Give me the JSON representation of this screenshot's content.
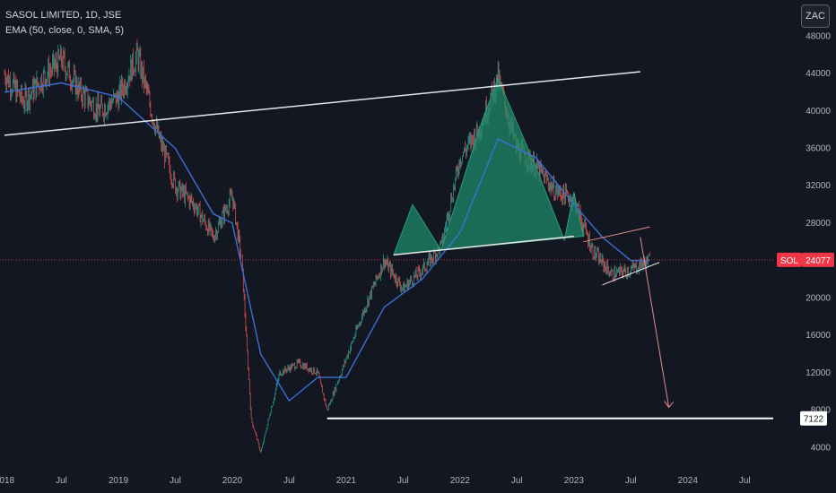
{
  "header": {
    "symbol_line": "SASOL LIMITED, 1D, JSE",
    "indicator_line": "EMA (50, close, 0, SMA, 5)",
    "currency": "ZAC"
  },
  "chart_data": {
    "type": "candlestick",
    "title": "SASOL LIMITED, 1D, JSE",
    "ylim": [
      2000,
      47000
    ],
    "y_ticks": [
      4000,
      8000,
      12000,
      16000,
      20000,
      24000,
      28000,
      32000,
      36000,
      40000,
      44000,
      48000
    ],
    "y_tick_labels": [
      "4000",
      "8000",
      "12000",
      "16000",
      "20000",
      "24000",
      "28000",
      "32000",
      "36000",
      "40000",
      "44000",
      "48000"
    ],
    "x_ticks": [
      "2018-01",
      "2018-07",
      "2019-01",
      "2019-07",
      "2020-01",
      "2020-07",
      "2021-01",
      "2021-07",
      "2022-01",
      "2022-07",
      "2023-01",
      "2023-07",
      "2024-01",
      "2024-07"
    ],
    "x_tick_labels": [
      "2018",
      "Jul",
      "2019",
      "Jul",
      "2020",
      "Jul",
      "2021",
      "Jul",
      "2022",
      "Jul",
      "2023",
      "Jul",
      "2024",
      "Jul"
    ],
    "grid": false,
    "price_path": [
      [
        "2018-01",
        44000
      ],
      [
        "2018-03",
        41000
      ],
      [
        "2018-05",
        43500
      ],
      [
        "2018-07",
        45500
      ],
      [
        "2018-09",
        42000
      ],
      [
        "2018-11",
        40000
      ],
      [
        "2019-01",
        41500
      ],
      [
        "2019-03",
        46000
      ],
      [
        "2019-05",
        38000
      ],
      [
        "2019-07",
        32000
      ],
      [
        "2019-09",
        30000
      ],
      [
        "2019-11",
        26500
      ],
      [
        "2020-01",
        31000
      ],
      [
        "2020-02",
        24000
      ],
      [
        "2020-03",
        7000
      ],
      [
        "2020-04",
        3500
      ],
      [
        "2020-06",
        12000
      ],
      [
        "2020-08",
        13000
      ],
      [
        "2020-10",
        12000
      ],
      [
        "2020-11",
        8000
      ],
      [
        "2021-01",
        13500
      ],
      [
        "2021-03",
        19000
      ],
      [
        "2021-05",
        24000
      ],
      [
        "2021-07",
        21000
      ],
      [
        "2021-09",
        23000
      ],
      [
        "2021-11",
        25500
      ],
      [
        "2022-01",
        35000
      ],
      [
        "2022-03",
        38000
      ],
      [
        "2022-05",
        43500
      ],
      [
        "2022-07",
        36000
      ],
      [
        "2022-09",
        34000
      ],
      [
        "2022-11",
        31500
      ],
      [
        "2023-01",
        30500
      ],
      [
        "2023-03",
        25000
      ],
      [
        "2023-05",
        22500
      ],
      [
        "2023-07",
        23000
      ],
      [
        "2023-09",
        24077
      ]
    ],
    "ema": {
      "name": "EMA (50, close, 0, SMA, 5)",
      "color": "#3b6fd6",
      "points": [
        [
          "2018-01",
          42000
        ],
        [
          "2018-07",
          43000
        ],
        [
          "2019-01",
          41500
        ],
        [
          "2019-07",
          36000
        ],
        [
          "2019-11",
          29000
        ],
        [
          "2020-01",
          28000
        ],
        [
          "2020-04",
          14000
        ],
        [
          "2020-07",
          9000
        ],
        [
          "2020-10",
          11500
        ],
        [
          "2021-01",
          11500
        ],
        [
          "2021-05",
          19000
        ],
        [
          "2021-09",
          22000
        ],
        [
          "2022-01",
          27000
        ],
        [
          "2022-05",
          37000
        ],
        [
          "2022-09",
          35000
        ],
        [
          "2023-01",
          30000
        ],
        [
          "2023-04",
          26500
        ],
        [
          "2023-07",
          24000
        ],
        [
          "2023-09",
          24000
        ]
      ]
    },
    "last_price": {
      "symbol": "SOL",
      "value": 24077,
      "label": "24077",
      "color": "#f23645"
    },
    "target": {
      "value": 7122,
      "label": "7122",
      "from": "2020-11"
    },
    "trendline_long": {
      "from": [
        "2018-01",
        37400
      ],
      "to": [
        "2023-08",
        44200
      ]
    },
    "neckline": {
      "from": [
        "2021-06",
        24600
      ],
      "to": [
        "2023-01",
        26600
      ]
    },
    "head_and_shoulders": {
      "color": "#1f8a6a",
      "points": [
        [
          "2021-06",
          24600
        ],
        [
          "2021-08",
          30000
        ],
        [
          "2021-11",
          25100
        ],
        [
          "2022-03",
          38000
        ],
        [
          "2022-05",
          43500
        ],
        [
          "2022-09",
          34000
        ],
        [
          "2022-12",
          26200
        ],
        [
          "2023-01",
          31300
        ],
        [
          "2023-02",
          26600
        ]
      ]
    },
    "channel": {
      "upper": {
        "from": [
          "2023-02",
          26000
        ],
        "to": [
          "2023-09",
          27600
        ]
      },
      "lower": {
        "from": [
          "2023-04",
          21400
        ],
        "to": [
          "2023-10",
          23800
        ]
      }
    },
    "projection_arrow": {
      "from": [
        "2023-08",
        26500
      ],
      "to": [
        "2023-11",
        8300
      ],
      "color": "#e58c8a"
    }
  }
}
